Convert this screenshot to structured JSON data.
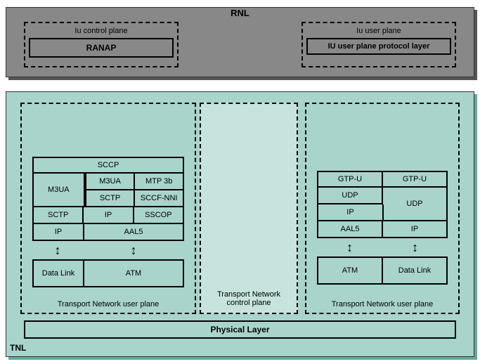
{
  "rnl": {
    "label": "RNL",
    "left": {
      "title": "Iu control plane",
      "box": "RANAP"
    },
    "right": {
      "title": "Iu user plane",
      "box": "IU user plane protocol layer"
    }
  },
  "tnl": {
    "label": "TNL",
    "left": {
      "title": "Transport Network user plane",
      "sccp": "SCCP",
      "m3ua_l": "M3UA",
      "m3ua_r": "M3UA",
      "mtp3b": "MTP 3b",
      "sctp_r": "SCTP",
      "sccf": "SCCF-NNI",
      "sctp_l": "SCTP",
      "ip_m": "IP",
      "sscop": "SSCOP",
      "ip_l": "IP",
      "aal5": "AAL5",
      "datalink": "Data Link",
      "atm": "ATM"
    },
    "mid": {
      "title": "Transport Network control plane"
    },
    "right": {
      "title": "Transport Network user plane",
      "gtpu1": "GTP-U",
      "gtpu2": "GTP-U",
      "udp1": "UDP",
      "udp2": "UDP",
      "ip1": "IP",
      "ip2": "IP",
      "aal5": "AAL5",
      "atm": "ATM",
      "datalink": "Data Link"
    },
    "physical": "Physical Layer"
  },
  "colors": {
    "rnl_bg": "#888888",
    "tnl_bg": "#a8d4cc",
    "tnl_mid_bg": "#c6e4dd",
    "border": "#000000"
  }
}
